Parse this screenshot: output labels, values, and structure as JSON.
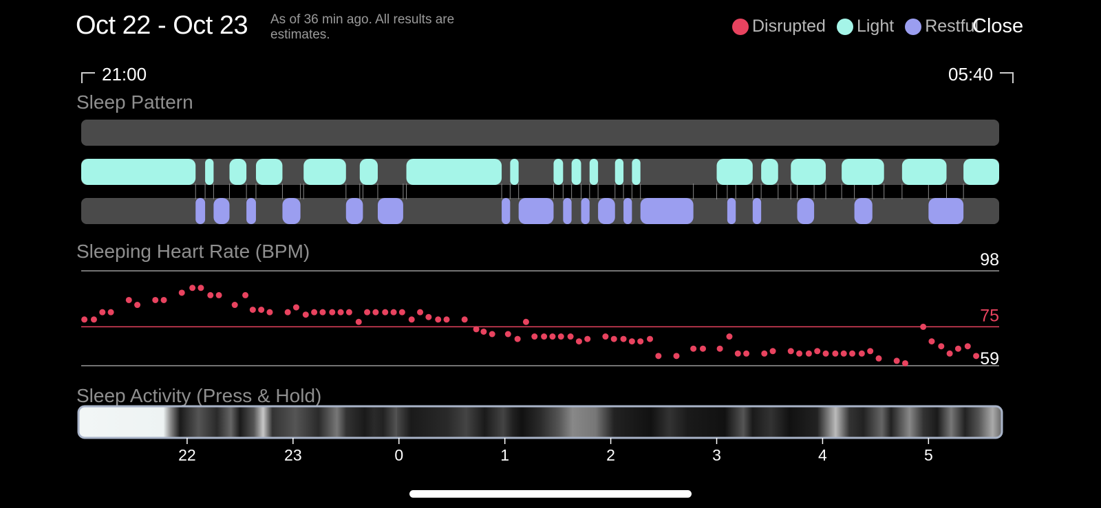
{
  "header": {
    "title": "Oct 22 - Oct 23",
    "subtitle": "As of 36 min ago. All results are estimates.",
    "close_label": "Close"
  },
  "legend": [
    {
      "label": "Disrupted",
      "color": "#E8435F"
    },
    {
      "label": "Light",
      "color": "#A5F5E8"
    },
    {
      "label": "Restful",
      "color": "#9B9EF0"
    }
  ],
  "time_range": {
    "start": "21:00",
    "end": "05:40"
  },
  "sections": {
    "sleep_pattern": "Sleep Pattern",
    "heart_rate": "Sleeping Heart Rate (BPM)",
    "activity": "Sleep Activity (Press & Hold)"
  },
  "colors": {
    "track": "#4A4A4A",
    "light": "#A5F5E8",
    "restful": "#9B9EF0",
    "heart_dot": "#E8435F",
    "avg_line": "#E8435F",
    "ref_line": "#9A9A9A"
  },
  "chart_data": [
    {
      "type": "timeline",
      "start_hour": 21.0,
      "end_hour": 29.667,
      "lanes": [
        {
          "name": "Disrupted",
          "segments": []
        },
        {
          "name": "Light",
          "segments": [
            [
              21.0,
              22.08
            ],
            [
              22.17,
              22.25
            ],
            [
              22.4,
              22.56
            ],
            [
              22.65,
              22.9
            ],
            [
              23.1,
              23.5
            ],
            [
              23.63,
              23.8
            ],
            [
              24.07,
              24.97
            ],
            [
              25.05,
              25.13
            ],
            [
              25.46,
              25.55
            ],
            [
              25.63,
              25.72
            ],
            [
              25.8,
              25.88
            ],
            [
              26.04,
              26.12
            ],
            [
              26.2,
              26.28
            ],
            [
              27.0,
              27.34
            ],
            [
              27.42,
              27.58
            ],
            [
              27.7,
              28.03
            ],
            [
              28.18,
              28.58
            ],
            [
              28.75,
              29.17
            ],
            [
              29.33,
              29.667
            ]
          ]
        },
        {
          "name": "Restful",
          "segments": [
            [
              22.08,
              22.17
            ],
            [
              22.25,
              22.4
            ],
            [
              22.56,
              22.65
            ],
            [
              22.9,
              23.07
            ],
            [
              23.5,
              23.66
            ],
            [
              23.8,
              24.04
            ],
            [
              24.97,
              25.05
            ],
            [
              25.13,
              25.46
            ],
            [
              25.55,
              25.63
            ],
            [
              25.72,
              25.8
            ],
            [
              25.88,
              26.04
            ],
            [
              26.12,
              26.2
            ],
            [
              26.28,
              26.78
            ],
            [
              27.1,
              27.18
            ],
            [
              27.34,
              27.42
            ],
            [
              27.76,
              27.92
            ],
            [
              28.3,
              28.47
            ],
            [
              29.0,
              29.33
            ]
          ]
        }
      ]
    },
    {
      "type": "scatter",
      "title": "Sleeping Heart Rate (BPM)",
      "ymin_label": "59",
      "avg_label": "75",
      "ymax_label": "98",
      "ylim": [
        59,
        98
      ],
      "avg": 75,
      "points": [
        [
          21.03,
          78
        ],
        [
          21.12,
          78
        ],
        [
          21.2,
          81
        ],
        [
          21.28,
          81
        ],
        [
          21.45,
          86
        ],
        [
          21.53,
          84
        ],
        [
          21.7,
          86
        ],
        [
          21.78,
          86
        ],
        [
          21.95,
          89
        ],
        [
          22.05,
          91
        ],
        [
          22.13,
          91
        ],
        [
          22.22,
          88
        ],
        [
          22.3,
          88
        ],
        [
          22.45,
          84
        ],
        [
          22.55,
          88
        ],
        [
          22.62,
          82
        ],
        [
          22.7,
          82
        ],
        [
          22.78,
          81
        ],
        [
          22.95,
          81
        ],
        [
          23.03,
          83
        ],
        [
          23.12,
          80
        ],
        [
          23.2,
          81
        ],
        [
          23.28,
          81
        ],
        [
          23.37,
          81
        ],
        [
          23.45,
          81
        ],
        [
          23.53,
          81
        ],
        [
          23.62,
          77
        ],
        [
          23.7,
          81
        ],
        [
          23.78,
          81
        ],
        [
          23.87,
          81
        ],
        [
          23.95,
          81
        ],
        [
          24.03,
          81
        ],
        [
          24.12,
          78
        ],
        [
          24.2,
          81
        ],
        [
          24.28,
          79
        ],
        [
          24.37,
          78
        ],
        [
          24.45,
          78
        ],
        [
          24.62,
          78
        ],
        [
          24.73,
          74
        ],
        [
          24.8,
          73
        ],
        [
          24.88,
          72
        ],
        [
          25.03,
          72
        ],
        [
          25.12,
          70
        ],
        [
          25.2,
          77
        ],
        [
          25.28,
          71
        ],
        [
          25.37,
          71
        ],
        [
          25.45,
          71
        ],
        [
          25.53,
          71
        ],
        [
          25.62,
          71
        ],
        [
          25.7,
          69
        ],
        [
          25.78,
          70
        ],
        [
          25.95,
          71
        ],
        [
          26.03,
          70
        ],
        [
          26.12,
          70
        ],
        [
          26.2,
          69
        ],
        [
          26.28,
          69
        ],
        [
          26.37,
          70
        ],
        [
          26.45,
          63
        ],
        [
          26.62,
          63
        ],
        [
          26.78,
          66
        ],
        [
          26.87,
          66
        ],
        [
          27.03,
          66
        ],
        [
          27.12,
          71
        ],
        [
          27.2,
          64
        ],
        [
          27.28,
          64
        ],
        [
          27.45,
          64
        ],
        [
          27.53,
          65
        ],
        [
          27.7,
          65
        ],
        [
          27.78,
          64
        ],
        [
          27.87,
          64
        ],
        [
          27.95,
          65
        ],
        [
          28.03,
          64
        ],
        [
          28.12,
          64
        ],
        [
          28.2,
          64
        ],
        [
          28.28,
          64
        ],
        [
          28.37,
          64
        ],
        [
          28.45,
          65
        ],
        [
          28.53,
          62
        ],
        [
          28.7,
          61
        ],
        [
          28.78,
          60
        ],
        [
          28.95,
          75
        ],
        [
          29.03,
          69
        ],
        [
          29.12,
          67
        ],
        [
          29.2,
          64
        ],
        [
          29.28,
          66
        ],
        [
          29.37,
          67
        ],
        [
          29.45,
          63
        ]
      ]
    },
    {
      "type": "heatmap",
      "title": "Sleep Activity (Press & Hold)",
      "x_ticks": [
        "22",
        "23",
        "0",
        "1",
        "2",
        "3",
        "4",
        "5"
      ],
      "x_tick_hours": [
        22,
        23,
        24,
        25,
        26,
        27,
        28,
        29
      ]
    }
  ]
}
